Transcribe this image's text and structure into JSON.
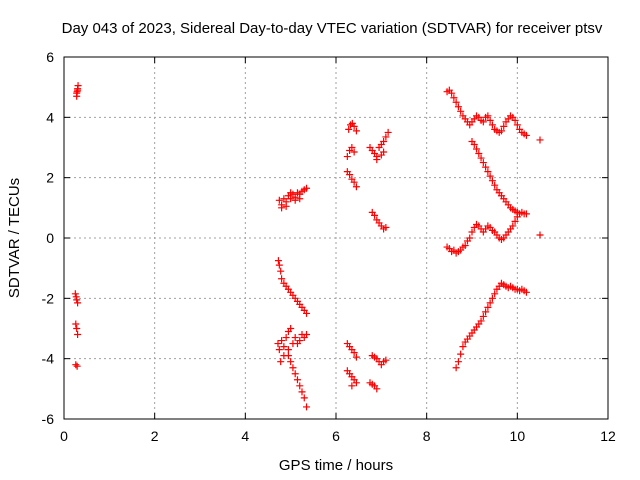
{
  "chart_data": {
    "type": "scatter",
    "title": "Day 043 of 2023, Sidereal Day-to-day VTEC variation (SDTVAR) for receiver ptsv",
    "xlabel": "GPS time / hours",
    "ylabel": "SDTVAR / TECUs",
    "xlim": [
      0,
      12
    ],
    "ylim": [
      -6,
      6
    ],
    "xticks": [
      0,
      2,
      4,
      6,
      8,
      10,
      12
    ],
    "yticks": [
      -6,
      -4,
      -2,
      0,
      2,
      4,
      6
    ],
    "xtick_labels": [
      "0",
      "2",
      "4",
      "6",
      "8",
      "10",
      "12"
    ],
    "ytick_labels": [
      "-6",
      "-4",
      "-2",
      "0",
      "2",
      "4",
      "6"
    ],
    "grid": true,
    "marker": "plus",
    "color": "#ff0000",
    "series": [
      {
        "points": [
          [
            0.28,
            4.7
          ],
          [
            0.29,
            4.85
          ],
          [
            0.3,
            4.95
          ],
          [
            0.31,
            5.05
          ],
          [
            0.28,
            4.8
          ],
          [
            0.3,
            4.9
          ],
          [
            0.25,
            -1.85
          ],
          [
            0.27,
            -1.95
          ],
          [
            0.28,
            -2.05
          ],
          [
            0.3,
            -2.15
          ],
          [
            0.26,
            -2.85
          ],
          [
            0.28,
            -3.0
          ],
          [
            0.3,
            -3.2
          ],
          [
            0.26,
            -4.2
          ],
          [
            0.29,
            -4.25
          ],
          [
            4.75,
            1.25
          ],
          [
            4.8,
            1.1
          ],
          [
            4.85,
            1.3
          ],
          [
            4.9,
            1.2
          ],
          [
            4.95,
            1.4
          ],
          [
            5.0,
            1.3
          ],
          [
            5.05,
            1.45
          ],
          [
            5.1,
            1.35
          ],
          [
            5.15,
            1.5
          ],
          [
            5.2,
            1.45
          ],
          [
            5.25,
            1.55
          ],
          [
            5.3,
            1.6
          ],
          [
            5.35,
            1.65
          ],
          [
            4.8,
            1.0
          ],
          [
            4.9,
            1.05
          ],
          [
            5.0,
            1.5
          ],
          [
            5.1,
            1.25
          ],
          [
            5.2,
            1.3
          ],
          [
            4.73,
            -0.75
          ],
          [
            4.75,
            -0.9
          ],
          [
            4.78,
            -1.1
          ],
          [
            4.8,
            -1.35
          ],
          [
            4.85,
            -1.5
          ],
          [
            4.9,
            -1.6
          ],
          [
            4.95,
            -1.7
          ],
          [
            5.0,
            -1.8
          ],
          [
            5.05,
            -1.9
          ],
          [
            5.1,
            -2.0
          ],
          [
            5.15,
            -2.1
          ],
          [
            5.2,
            -2.2
          ],
          [
            5.25,
            -2.3
          ],
          [
            5.3,
            -2.4
          ],
          [
            5.35,
            -2.5
          ],
          [
            4.72,
            -3.5
          ],
          [
            4.75,
            -3.7
          ],
          [
            4.78,
            -4.1
          ],
          [
            4.8,
            -3.4
          ],
          [
            4.85,
            -3.6
          ],
          [
            4.9,
            -3.3
          ],
          [
            4.95,
            -3.1
          ],
          [
            5.0,
            -3.0
          ],
          [
            5.05,
            -3.5
          ],
          [
            5.1,
            -3.3
          ],
          [
            5.15,
            -3.5
          ],
          [
            5.2,
            -3.4
          ],
          [
            5.25,
            -3.2
          ],
          [
            5.3,
            -3.3
          ],
          [
            5.35,
            -3.2
          ],
          [
            4.85,
            -3.9
          ],
          [
            4.95,
            -3.7
          ],
          [
            4.95,
            -3.9
          ],
          [
            5.0,
            -4.1
          ],
          [
            5.05,
            -4.3
          ],
          [
            5.1,
            -4.5
          ],
          [
            5.15,
            -4.7
          ],
          [
            5.2,
            -4.9
          ],
          [
            5.25,
            -5.1
          ],
          [
            5.3,
            -5.3
          ],
          [
            5.35,
            -5.6
          ],
          [
            6.28,
            3.6
          ],
          [
            6.32,
            3.75
          ],
          [
            6.36,
            3.8
          ],
          [
            6.4,
            3.7
          ],
          [
            6.45,
            3.55
          ],
          [
            6.3,
            2.9
          ],
          [
            6.35,
            3.0
          ],
          [
            6.4,
            2.85
          ],
          [
            6.25,
            2.7
          ],
          [
            6.25,
            2.2
          ],
          [
            6.3,
            2.1
          ],
          [
            6.35,
            1.95
          ],
          [
            6.4,
            1.85
          ],
          [
            6.45,
            1.7
          ],
          [
            6.25,
            -3.5
          ],
          [
            6.3,
            -3.6
          ],
          [
            6.35,
            -3.7
          ],
          [
            6.4,
            -3.8
          ],
          [
            6.45,
            -3.95
          ],
          [
            6.25,
            -4.4
          ],
          [
            6.3,
            -4.5
          ],
          [
            6.35,
            -4.6
          ],
          [
            6.4,
            -4.7
          ],
          [
            6.45,
            -4.8
          ],
          [
            6.35,
            -4.9
          ],
          [
            6.75,
            3.0
          ],
          [
            6.8,
            2.9
          ],
          [
            6.85,
            2.8
          ],
          [
            6.9,
            2.7
          ],
          [
            6.95,
            3.0
          ],
          [
            7.0,
            3.1
          ],
          [
            7.05,
            3.2
          ],
          [
            7.1,
            3.35
          ],
          [
            7.15,
            3.5
          ],
          [
            6.9,
            2.6
          ],
          [
            7.0,
            2.75
          ],
          [
            7.05,
            2.85
          ],
          [
            6.8,
            0.85
          ],
          [
            6.85,
            0.75
          ],
          [
            6.9,
            0.6
          ],
          [
            6.95,
            0.5
          ],
          [
            7.0,
            0.4
          ],
          [
            7.05,
            0.3
          ],
          [
            7.1,
            0.35
          ],
          [
            6.8,
            -3.9
          ],
          [
            6.85,
            -3.95
          ],
          [
            6.9,
            -4.0
          ],
          [
            6.95,
            -4.1
          ],
          [
            7.0,
            -4.2
          ],
          [
            7.05,
            -4.1
          ],
          [
            7.1,
            -4.05
          ],
          [
            6.75,
            -4.8
          ],
          [
            6.8,
            -4.85
          ],
          [
            6.85,
            -4.9
          ],
          [
            6.9,
            -5.0
          ],
          [
            8.45,
            -0.3
          ],
          [
            8.5,
            -0.35
          ],
          [
            8.55,
            -0.45
          ],
          [
            8.6,
            -0.4
          ],
          [
            8.65,
            -0.5
          ],
          [
            8.7,
            -0.45
          ],
          [
            8.75,
            -0.4
          ],
          [
            8.8,
            -0.3
          ],
          [
            8.85,
            -0.25
          ],
          [
            8.9,
            -0.1
          ],
          [
            8.95,
            0.0
          ],
          [
            9.0,
            0.2
          ],
          [
            9.05,
            0.35
          ],
          [
            9.1,
            0.45
          ],
          [
            9.15,
            0.4
          ],
          [
            9.2,
            0.3
          ],
          [
            9.25,
            0.2
          ],
          [
            9.3,
            0.3
          ],
          [
            9.35,
            0.4
          ],
          [
            9.4,
            0.35
          ],
          [
            9.45,
            0.25
          ],
          [
            9.5,
            0.2
          ],
          [
            9.55,
            0.1
          ],
          [
            9.6,
            0.0
          ],
          [
            9.65,
            -0.05
          ],
          [
            9.7,
            0.0
          ],
          [
            9.75,
            0.1
          ],
          [
            9.8,
            0.2
          ],
          [
            9.85,
            0.3
          ],
          [
            9.9,
            0.4
          ],
          [
            9.95,
            0.55
          ],
          [
            10.0,
            0.7
          ],
          [
            10.05,
            0.8
          ],
          [
            10.1,
            0.85
          ],
          [
            10.15,
            0.8
          ],
          [
            10.2,
            0.8
          ],
          [
            10.5,
            0.1
          ],
          [
            8.45,
            4.85
          ],
          [
            8.5,
            4.9
          ],
          [
            8.55,
            4.8
          ],
          [
            8.6,
            4.65
          ],
          [
            8.65,
            4.5
          ],
          [
            8.7,
            4.35
          ],
          [
            8.75,
            4.2
          ],
          [
            8.8,
            4.05
          ],
          [
            8.85,
            3.95
          ],
          [
            8.9,
            3.85
          ],
          [
            8.95,
            3.75
          ],
          [
            9.0,
            3.85
          ],
          [
            9.05,
            3.95
          ],
          [
            9.1,
            4.05
          ],
          [
            9.15,
            4.0
          ],
          [
            9.2,
            3.9
          ],
          [
            9.25,
            3.85
          ],
          [
            9.3,
            4.0
          ],
          [
            9.35,
            4.05
          ],
          [
            9.4,
            3.9
          ],
          [
            9.45,
            3.75
          ],
          [
            9.5,
            3.6
          ],
          [
            9.55,
            3.55
          ],
          [
            9.6,
            3.5
          ],
          [
            9.65,
            3.55
          ],
          [
            9.7,
            3.7
          ],
          [
            9.75,
            3.85
          ],
          [
            9.8,
            3.95
          ],
          [
            9.85,
            4.05
          ],
          [
            9.9,
            4.0
          ],
          [
            9.95,
            3.9
          ],
          [
            10.0,
            3.75
          ],
          [
            10.05,
            3.6
          ],
          [
            10.1,
            3.5
          ],
          [
            10.15,
            3.45
          ],
          [
            10.2,
            3.4
          ],
          [
            10.5,
            3.25
          ],
          [
            9.0,
            3.2
          ],
          [
            9.05,
            3.1
          ],
          [
            9.1,
            2.95
          ],
          [
            9.15,
            2.8
          ],
          [
            9.2,
            2.65
          ],
          [
            9.25,
            2.5
          ],
          [
            9.3,
            2.35
          ],
          [
            9.35,
            2.2
          ],
          [
            9.4,
            2.05
          ],
          [
            9.45,
            1.9
          ],
          [
            9.5,
            1.75
          ],
          [
            9.55,
            1.6
          ],
          [
            9.6,
            1.5
          ],
          [
            9.65,
            1.4
          ],
          [
            9.7,
            1.3
          ],
          [
            9.75,
            1.2
          ],
          [
            9.8,
            1.1
          ],
          [
            9.85,
            1.0
          ],
          [
            9.9,
            0.95
          ],
          [
            9.95,
            0.9
          ],
          [
            10.0,
            0.85
          ],
          [
            8.65,
            -4.3
          ],
          [
            8.7,
            -4.1
          ],
          [
            8.75,
            -3.85
          ],
          [
            8.8,
            -3.6
          ],
          [
            8.85,
            -3.45
          ],
          [
            8.9,
            -3.35
          ],
          [
            8.95,
            -3.25
          ],
          [
            9.0,
            -3.15
          ],
          [
            9.05,
            -3.05
          ],
          [
            9.1,
            -2.95
          ],
          [
            9.15,
            -2.85
          ],
          [
            9.2,
            -2.75
          ],
          [
            9.25,
            -2.6
          ],
          [
            9.3,
            -2.45
          ],
          [
            9.35,
            -2.3
          ],
          [
            9.4,
            -2.15
          ],
          [
            9.45,
            -2.0
          ],
          [
            9.5,
            -1.85
          ],
          [
            9.55,
            -1.7
          ],
          [
            9.6,
            -1.6
          ],
          [
            9.65,
            -1.5
          ],
          [
            9.7,
            -1.55
          ],
          [
            9.75,
            -1.6
          ],
          [
            9.8,
            -1.65
          ],
          [
            9.85,
            -1.6
          ],
          [
            9.9,
            -1.65
          ],
          [
            9.95,
            -1.7
          ],
          [
            10.0,
            -1.7
          ],
          [
            10.05,
            -1.75
          ],
          [
            10.1,
            -1.7
          ],
          [
            10.15,
            -1.75
          ],
          [
            10.2,
            -1.8
          ]
        ]
      }
    ]
  }
}
